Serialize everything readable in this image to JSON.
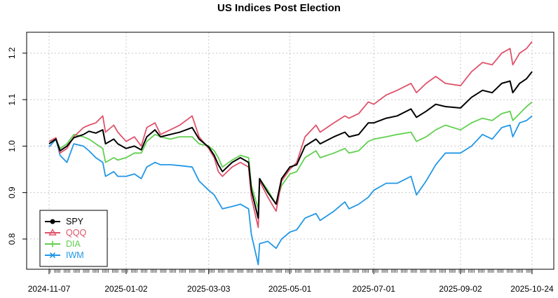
{
  "chart_data": {
    "type": "line",
    "title": "US Indices Post Election",
    "xlabel": "",
    "ylabel": "",
    "x_tick_labels": [
      "2024-11-07",
      "2025-01-02",
      "2025-03-03",
      "2025-05-01",
      "2025-07-01",
      "2025-09-02",
      "2025-10-24"
    ],
    "y_tick_labels": [
      "0.8",
      "0.9",
      "1.0",
      "1.1",
      "1.2"
    ],
    "ylim": [
      0.735,
      1.245
    ],
    "xlim": [
      "2024-11-07",
      "2025-10-24"
    ],
    "grid": true,
    "legend_position": "bottom-left",
    "series": [
      {
        "name": "SPY",
        "color": "#000000",
        "marker": "circle",
        "points": [
          [
            "2024-11-07",
            1.005
          ],
          [
            "2024-11-12",
            1.015
          ],
          [
            "2024-11-15",
            0.99
          ],
          [
            "2024-11-20",
            1.0
          ],
          [
            "2024-11-25",
            1.018
          ],
          [
            "2024-12-02",
            1.025
          ],
          [
            "2024-12-06",
            1.032
          ],
          [
            "2024-12-11",
            1.028
          ],
          [
            "2024-12-16",
            1.035
          ],
          [
            "2024-12-18",
            1.005
          ],
          [
            "2024-12-24",
            1.015
          ],
          [
            "2024-12-27",
            1.005
          ],
          [
            "2025-01-02",
            0.995
          ],
          [
            "2025-01-08",
            1.0
          ],
          [
            "2025-01-13",
            0.992
          ],
          [
            "2025-01-17",
            1.02
          ],
          [
            "2025-01-23",
            1.035
          ],
          [
            "2025-01-27",
            1.02
          ],
          [
            "2025-02-03",
            1.025
          ],
          [
            "2025-02-10",
            1.03
          ],
          [
            "2025-02-19",
            1.04
          ],
          [
            "2025-02-24",
            1.015
          ],
          [
            "2025-03-03",
            0.998
          ],
          [
            "2025-03-07",
            0.98
          ],
          [
            "2025-03-10",
            0.96
          ],
          [
            "2025-03-13",
            0.945
          ],
          [
            "2025-03-20",
            0.965
          ],
          [
            "2025-03-26",
            0.975
          ],
          [
            "2025-04-01",
            0.965
          ],
          [
            "2025-04-03",
            0.905
          ],
          [
            "2025-04-08",
            0.845
          ],
          [
            "2025-04-09",
            0.93
          ],
          [
            "2025-04-15",
            0.9
          ],
          [
            "2025-04-21",
            0.875
          ],
          [
            "2025-04-25",
            0.93
          ],
          [
            "2025-05-01",
            0.955
          ],
          [
            "2025-05-06",
            0.96
          ],
          [
            "2025-05-12",
            1.0
          ],
          [
            "2025-05-20",
            1.015
          ],
          [
            "2025-05-23",
            1.005
          ],
          [
            "2025-06-02",
            1.02
          ],
          [
            "2025-06-10",
            1.03
          ],
          [
            "2025-06-13",
            1.02
          ],
          [
            "2025-06-20",
            1.025
          ],
          [
            "2025-06-27",
            1.05
          ],
          [
            "2025-07-01",
            1.05
          ],
          [
            "2025-07-10",
            1.06
          ],
          [
            "2025-07-18",
            1.065
          ],
          [
            "2025-07-28",
            1.08
          ],
          [
            "2025-08-01",
            1.062
          ],
          [
            "2025-08-08",
            1.075
          ],
          [
            "2025-08-15",
            1.09
          ],
          [
            "2025-08-22",
            1.085
          ],
          [
            "2025-09-02",
            1.082
          ],
          [
            "2025-09-10",
            1.105
          ],
          [
            "2025-09-18",
            1.12
          ],
          [
            "2025-09-25",
            1.115
          ],
          [
            "2025-10-02",
            1.135
          ],
          [
            "2025-10-08",
            1.14
          ],
          [
            "2025-10-10",
            1.115
          ],
          [
            "2025-10-15",
            1.135
          ],
          [
            "2025-10-20",
            1.145
          ],
          [
            "2025-10-24",
            1.16
          ]
        ]
      },
      {
        "name": "QQQ",
        "color": "#DF536B",
        "marker": "triangle",
        "points": [
          [
            "2024-11-07",
            1.01
          ],
          [
            "2024-11-12",
            1.018
          ],
          [
            "2024-11-15",
            0.985
          ],
          [
            "2024-11-20",
            0.995
          ],
          [
            "2024-11-25",
            1.02
          ],
          [
            "2024-12-02",
            1.04
          ],
          [
            "2024-12-06",
            1.045
          ],
          [
            "2024-12-11",
            1.05
          ],
          [
            "2024-12-16",
            1.065
          ],
          [
            "2024-12-18",
            1.03
          ],
          [
            "2024-12-24",
            1.045
          ],
          [
            "2024-12-27",
            1.03
          ],
          [
            "2025-01-02",
            1.01
          ],
          [
            "2025-01-08",
            1.02
          ],
          [
            "2025-01-13",
            1.0
          ],
          [
            "2025-01-17",
            1.04
          ],
          [
            "2025-01-23",
            1.05
          ],
          [
            "2025-01-27",
            1.025
          ],
          [
            "2025-02-03",
            1.035
          ],
          [
            "2025-02-10",
            1.045
          ],
          [
            "2025-02-19",
            1.065
          ],
          [
            "2025-02-24",
            1.02
          ],
          [
            "2025-03-03",
            0.995
          ],
          [
            "2025-03-07",
            0.975
          ],
          [
            "2025-03-10",
            0.945
          ],
          [
            "2025-03-13",
            0.935
          ],
          [
            "2025-03-20",
            0.955
          ],
          [
            "2025-03-26",
            0.965
          ],
          [
            "2025-04-01",
            0.955
          ],
          [
            "2025-04-03",
            0.89
          ],
          [
            "2025-04-08",
            0.825
          ],
          [
            "2025-04-09",
            0.925
          ],
          [
            "2025-04-15",
            0.89
          ],
          [
            "2025-04-21",
            0.86
          ],
          [
            "2025-04-25",
            0.925
          ],
          [
            "2025-05-01",
            0.95
          ],
          [
            "2025-05-06",
            0.965
          ],
          [
            "2025-05-12",
            1.02
          ],
          [
            "2025-05-20",
            1.045
          ],
          [
            "2025-05-23",
            1.03
          ],
          [
            "2025-06-02",
            1.05
          ],
          [
            "2025-06-10",
            1.065
          ],
          [
            "2025-06-13",
            1.06
          ],
          [
            "2025-06-20",
            1.07
          ],
          [
            "2025-06-27",
            1.095
          ],
          [
            "2025-07-01",
            1.09
          ],
          [
            "2025-07-10",
            1.11
          ],
          [
            "2025-07-18",
            1.12
          ],
          [
            "2025-07-28",
            1.135
          ],
          [
            "2025-08-01",
            1.115
          ],
          [
            "2025-08-08",
            1.135
          ],
          [
            "2025-08-15",
            1.15
          ],
          [
            "2025-08-22",
            1.135
          ],
          [
            "2025-09-02",
            1.13
          ],
          [
            "2025-09-10",
            1.16
          ],
          [
            "2025-09-18",
            1.18
          ],
          [
            "2025-09-25",
            1.175
          ],
          [
            "2025-10-02",
            1.2
          ],
          [
            "2025-10-08",
            1.21
          ],
          [
            "2025-10-10",
            1.175
          ],
          [
            "2025-10-15",
            1.2
          ],
          [
            "2025-10-20",
            1.21
          ],
          [
            "2025-10-24",
            1.225
          ]
        ]
      },
      {
        "name": "DIA",
        "color": "#61D04F",
        "marker": "plus",
        "points": [
          [
            "2024-11-07",
            1.01
          ],
          [
            "2024-11-12",
            1.015
          ],
          [
            "2024-11-15",
            0.995
          ],
          [
            "2024-11-20",
            1.005
          ],
          [
            "2024-11-25",
            1.025
          ],
          [
            "2024-12-02",
            1.02
          ],
          [
            "2024-12-06",
            1.015
          ],
          [
            "2024-12-11",
            1.005
          ],
          [
            "2024-12-16",
            0.995
          ],
          [
            "2024-12-18",
            0.965
          ],
          [
            "2024-12-24",
            0.975
          ],
          [
            "2024-12-27",
            0.97
          ],
          [
            "2025-01-02",
            0.975
          ],
          [
            "2025-01-08",
            0.985
          ],
          [
            "2025-01-13",
            0.985
          ],
          [
            "2025-01-17",
            1.01
          ],
          [
            "2025-01-23",
            1.025
          ],
          [
            "2025-01-27",
            1.02
          ],
          [
            "2025-02-03",
            1.015
          ],
          [
            "2025-02-10",
            1.02
          ],
          [
            "2025-02-19",
            1.02
          ],
          [
            "2025-02-24",
            1.005
          ],
          [
            "2025-03-03",
            1.0
          ],
          [
            "2025-03-07",
            0.99
          ],
          [
            "2025-03-10",
            0.975
          ],
          [
            "2025-03-13",
            0.955
          ],
          [
            "2025-03-20",
            0.97
          ],
          [
            "2025-03-26",
            0.98
          ],
          [
            "2025-04-01",
            0.975
          ],
          [
            "2025-04-03",
            0.915
          ],
          [
            "2025-04-08",
            0.865
          ],
          [
            "2025-04-09",
            0.93
          ],
          [
            "2025-04-15",
            0.905
          ],
          [
            "2025-04-21",
            0.875
          ],
          [
            "2025-04-25",
            0.915
          ],
          [
            "2025-05-01",
            0.94
          ],
          [
            "2025-05-06",
            0.945
          ],
          [
            "2025-05-12",
            0.975
          ],
          [
            "2025-05-20",
            0.99
          ],
          [
            "2025-05-23",
            0.975
          ],
          [
            "2025-06-02",
            0.985
          ],
          [
            "2025-06-10",
            0.995
          ],
          [
            "2025-06-13",
            0.985
          ],
          [
            "2025-06-20",
            0.99
          ],
          [
            "2025-06-27",
            1.01
          ],
          [
            "2025-07-01",
            1.015
          ],
          [
            "2025-07-10",
            1.02
          ],
          [
            "2025-07-18",
            1.025
          ],
          [
            "2025-07-28",
            1.03
          ],
          [
            "2025-08-01",
            1.01
          ],
          [
            "2025-08-08",
            1.02
          ],
          [
            "2025-08-15",
            1.035
          ],
          [
            "2025-08-22",
            1.045
          ],
          [
            "2025-09-02",
            1.035
          ],
          [
            "2025-09-10",
            1.05
          ],
          [
            "2025-09-18",
            1.06
          ],
          [
            "2025-09-25",
            1.055
          ],
          [
            "2025-10-02",
            1.07
          ],
          [
            "2025-10-08",
            1.075
          ],
          [
            "2025-10-10",
            1.055
          ],
          [
            "2025-10-15",
            1.07
          ],
          [
            "2025-10-20",
            1.085
          ],
          [
            "2025-10-24",
            1.095
          ]
        ]
      },
      {
        "name": "IWM",
        "color": "#2297E6",
        "marker": "cross",
        "points": [
          [
            "2024-11-07",
            0.998
          ],
          [
            "2024-11-12",
            1.015
          ],
          [
            "2024-11-15",
            0.98
          ],
          [
            "2024-11-20",
            0.965
          ],
          [
            "2024-11-25",
            1.005
          ],
          [
            "2024-12-02",
            1.0
          ],
          [
            "2024-12-06",
            0.99
          ],
          [
            "2024-12-11",
            0.975
          ],
          [
            "2024-12-16",
            0.965
          ],
          [
            "2024-12-18",
            0.935
          ],
          [
            "2024-12-24",
            0.945
          ],
          [
            "2024-12-27",
            0.935
          ],
          [
            "2025-01-02",
            0.935
          ],
          [
            "2025-01-08",
            0.94
          ],
          [
            "2025-01-13",
            0.93
          ],
          [
            "2025-01-17",
            0.955
          ],
          [
            "2025-01-23",
            0.965
          ],
          [
            "2025-01-27",
            0.96
          ],
          [
            "2025-02-03",
            0.96
          ],
          [
            "2025-02-10",
            0.958
          ],
          [
            "2025-02-19",
            0.955
          ],
          [
            "2025-02-24",
            0.925
          ],
          [
            "2025-03-03",
            0.905
          ],
          [
            "2025-03-07",
            0.895
          ],
          [
            "2025-03-10",
            0.88
          ],
          [
            "2025-03-13",
            0.865
          ],
          [
            "2025-03-20",
            0.87
          ],
          [
            "2025-03-26",
            0.875
          ],
          [
            "2025-04-01",
            0.865
          ],
          [
            "2025-04-03",
            0.81
          ],
          [
            "2025-04-08",
            0.745
          ],
          [
            "2025-04-09",
            0.79
          ],
          [
            "2025-04-15",
            0.795
          ],
          [
            "2025-04-21",
            0.78
          ],
          [
            "2025-04-25",
            0.8
          ],
          [
            "2025-05-01",
            0.815
          ],
          [
            "2025-05-06",
            0.82
          ],
          [
            "2025-05-12",
            0.845
          ],
          [
            "2025-05-20",
            0.855
          ],
          [
            "2025-05-23",
            0.84
          ],
          [
            "2025-06-02",
            0.86
          ],
          [
            "2025-06-10",
            0.88
          ],
          [
            "2025-06-13",
            0.865
          ],
          [
            "2025-06-20",
            0.875
          ],
          [
            "2025-06-27",
            0.89
          ],
          [
            "2025-07-01",
            0.905
          ],
          [
            "2025-07-10",
            0.92
          ],
          [
            "2025-07-18",
            0.92
          ],
          [
            "2025-07-28",
            0.935
          ],
          [
            "2025-08-01",
            0.895
          ],
          [
            "2025-08-08",
            0.925
          ],
          [
            "2025-08-15",
            0.96
          ],
          [
            "2025-08-22",
            0.985
          ],
          [
            "2025-09-02",
            0.985
          ],
          [
            "2025-09-10",
            1.0
          ],
          [
            "2025-09-18",
            1.025
          ],
          [
            "2025-09-25",
            1.015
          ],
          [
            "2025-10-02",
            1.04
          ],
          [
            "2025-10-08",
            1.045
          ],
          [
            "2025-10-10",
            1.02
          ],
          [
            "2025-10-15",
            1.05
          ],
          [
            "2025-10-20",
            1.055
          ],
          [
            "2025-10-24",
            1.065
          ]
        ]
      }
    ]
  }
}
